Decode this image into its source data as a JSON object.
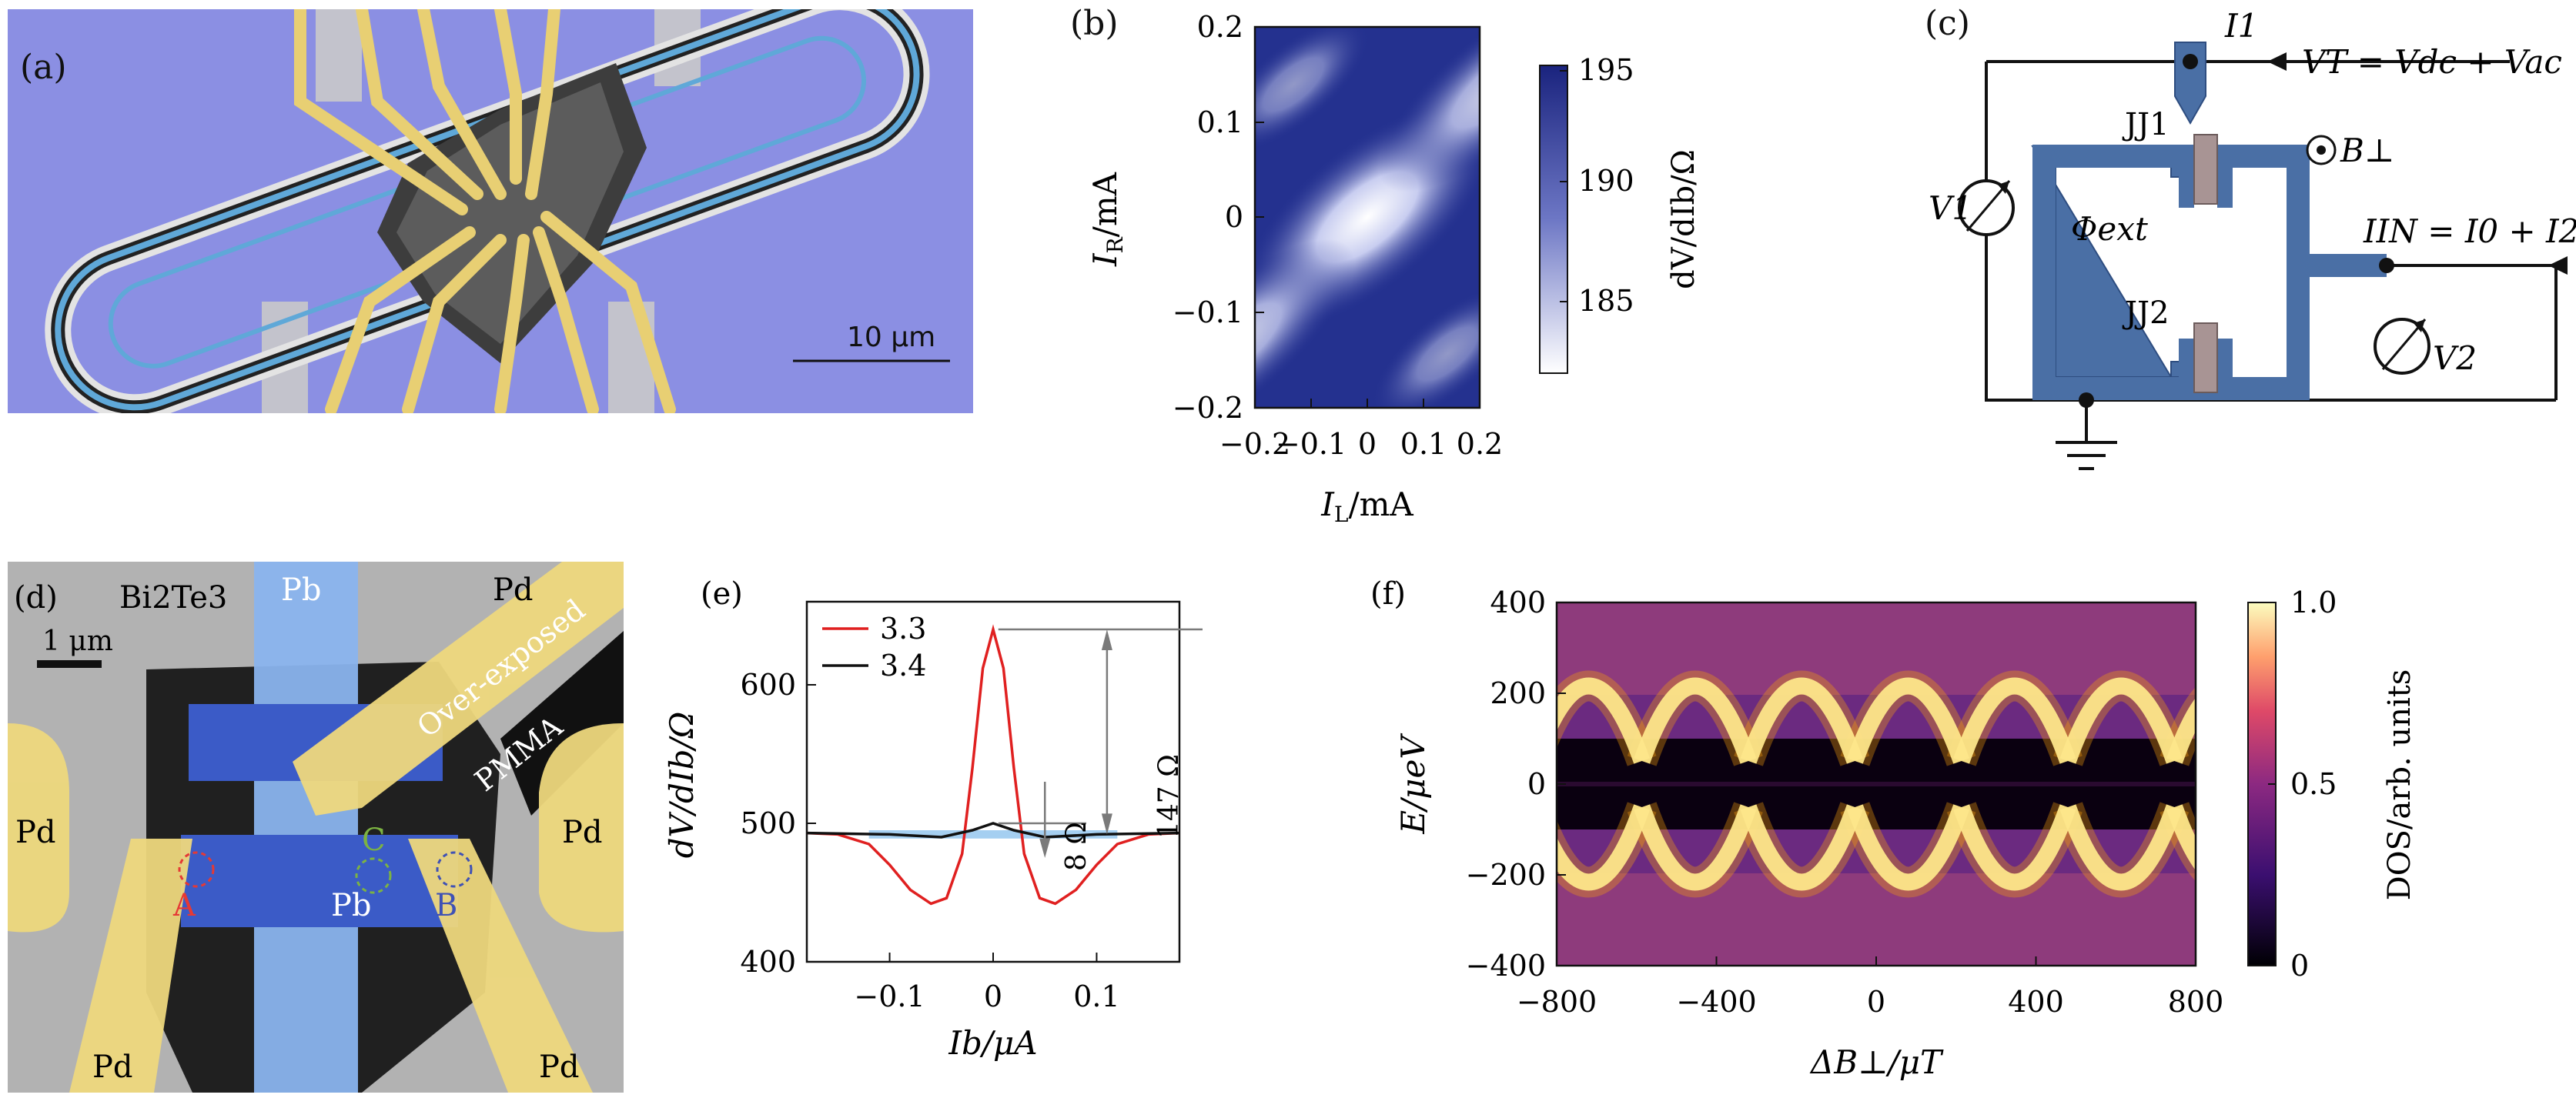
{
  "panel_a": {
    "label": "(a)",
    "scalebar": "10 μm"
  },
  "panel_b": {
    "label": "(b)",
    "xlabel_main": "I",
    "xlabel_sub": "L",
    "xlabel_unit": "/mA",
    "ylabel_main": "I",
    "ylabel_sub": "R",
    "ylabel_unit": "/mA",
    "xticks": [
      "−0.2",
      "−0.1",
      "0",
      "0.1",
      "0.2"
    ],
    "yticks": [
      "0.2",
      "0.1",
      "0",
      "−0.1",
      "−0.2"
    ],
    "colorbar_ticks": [
      "195",
      "190",
      "185"
    ],
    "colorbar_label": "dV/dIb/Ω",
    "colors": {
      "high": "#1a237e",
      "low": "#ffffff"
    }
  },
  "panel_c": {
    "label": "(c)",
    "I1": "I1",
    "VT": "VT = Vdc + Vac",
    "B_perp": "B⊥",
    "JJ1": "JJ1",
    "JJ2": "JJ2",
    "V1": "V1",
    "V2": "V2",
    "phi": "Φext",
    "IIN": "IIN = I0 + I2",
    "colors": {
      "device": "#4a6fa5",
      "junction": "#a89494"
    }
  },
  "panel_d": {
    "label": "(d)",
    "material": "Bi2Te3",
    "pb_top": "Pb",
    "pb_bottom": "Pb",
    "pd_labels": [
      "Pd",
      "Pd",
      "Pd",
      "Pd",
      "Pd"
    ],
    "scalebar": "1 μm",
    "overexposed": "Over-exposed",
    "pmma": "PMMA",
    "point_A": "A",
    "point_B": "B",
    "point_C": "C",
    "colors": {
      "pd": "#eed87d",
      "pb": "#3b5bc7",
      "A": "#e53935",
      "B": "#3f51b5",
      "C": "#7cb342"
    }
  },
  "panel_e": {
    "label": "(e)",
    "xlabel": "Ib/μA",
    "ylabel": "dV/dIb/Ω",
    "annot_8": "8 Ω",
    "annot_147": "147 Ω"
  },
  "panel_f": {
    "label": "(f)",
    "xlabel": "ΔB⊥/μT",
    "ylabel": "E/μeV",
    "xticks": [
      "−800",
      "−400",
      "0",
      "400",
      "800"
    ],
    "yticks": [
      "400",
      "200",
      "0",
      "−200",
      "−400"
    ],
    "colorbar_ticks": [
      "1.0",
      "0.5",
      "0"
    ],
    "colorbar_label": "DOS/arb. units"
  },
  "chart_data": [
    {
      "type": "line",
      "panel": "(e)",
      "xlabel": "Ib/μA",
      "ylabel": "dV/dIb/Ω",
      "xlim": [
        -0.18,
        0.18
      ],
      "ylim": [
        400,
        660
      ],
      "xticks": [
        "−0.1",
        "0",
        "0.1"
      ],
      "yticks": [
        "400",
        "500",
        "600"
      ],
      "legend_position": "top-left",
      "series": [
        {
          "name": "3.3",
          "color": "#e02020",
          "x": [
            -0.18,
            -0.15,
            -0.12,
            -0.1,
            -0.08,
            -0.06,
            -0.045,
            -0.03,
            -0.02,
            -0.01,
            0,
            0.01,
            0.02,
            0.03,
            0.045,
            0.06,
            0.08,
            0.1,
            0.12,
            0.15,
            0.18
          ],
          "y": [
            493,
            492,
            485,
            470,
            452,
            442,
            446,
            478,
            540,
            612,
            640,
            612,
            540,
            478,
            446,
            442,
            452,
            470,
            485,
            492,
            493
          ]
        },
        {
          "name": "3.4",
          "color": "#111111",
          "x": [
            -0.18,
            -0.1,
            -0.05,
            -0.02,
            0,
            0.02,
            0.05,
            0.1,
            0.18
          ],
          "y": [
            493,
            492,
            490,
            495,
            500,
            495,
            490,
            492,
            493
          ]
        }
      ],
      "annotations": [
        "8 Ω",
        "147 Ω"
      ]
    }
  ]
}
